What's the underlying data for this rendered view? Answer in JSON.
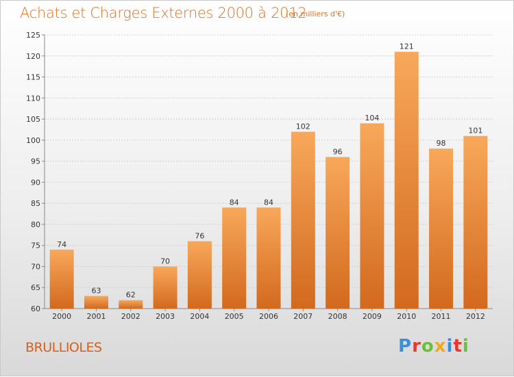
{
  "header": {
    "title": "Achats et Charges Externes 2000 à 2012",
    "subtitle": "(en milliers d'€)"
  },
  "footer": {
    "commune": "BRULLIOLES",
    "logo_text": "Proxiti"
  },
  "colors": {
    "bar_light": "#f8a85a",
    "bar_dark": "#d2691e",
    "title": "#e0701e",
    "logo": [
      "#3a8fd6",
      "#e8382a",
      "#6cbf3a",
      "#f2a81d",
      "#3a8fd6",
      "#e8382a",
      "#6cbf3a"
    ]
  },
  "chart_data": {
    "type": "bar",
    "title": "Achats et Charges Externes 2000 à 2012",
    "subtitle": "(en milliers d'€)",
    "categories": [
      "2000",
      "2001",
      "2002",
      "2003",
      "2004",
      "2005",
      "2006",
      "2007",
      "2008",
      "2009",
      "2010",
      "2011",
      "2012"
    ],
    "values": [
      74,
      63,
      62,
      70,
      76,
      84,
      84,
      102,
      96,
      104,
      121,
      98,
      101
    ],
    "ylim": [
      60,
      125
    ],
    "yticks": [
      60,
      65,
      70,
      75,
      80,
      85,
      90,
      95,
      100,
      105,
      110,
      115,
      120,
      125
    ],
    "grid": true,
    "xlabel": "",
    "ylabel": ""
  }
}
